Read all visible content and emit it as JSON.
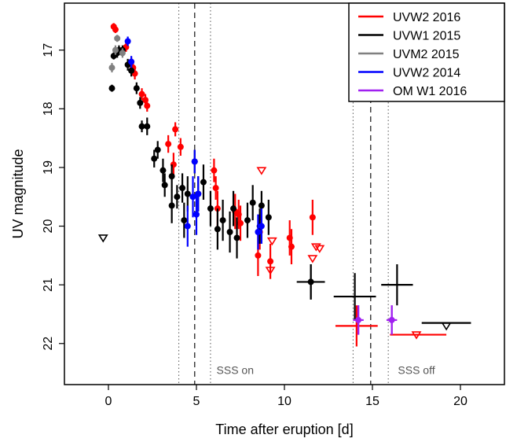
{
  "chart_data": {
    "type": "scatter",
    "xlabel": "Time after eruption [d]",
    "ylabel": "UV magnitude",
    "xlim": [
      -2.5,
      22.5
    ],
    "ylim": [
      22.7,
      16.2
    ],
    "y_inverted": true,
    "x_ticks": [
      0,
      5,
      10,
      15,
      20
    ],
    "y_ticks": [
      17,
      18,
      19,
      20,
      21,
      22
    ],
    "legend_position": "top-right",
    "grid": false,
    "vlines": {
      "dashed": [
        4.9,
        14.9
      ],
      "dotted": [
        4.0,
        5.8,
        13.9,
        15.9
      ]
    },
    "annotations": [
      {
        "text": "SSS on",
        "x": 7.2,
        "y": 22.45
      },
      {
        "text": "SSS off",
        "x": 17.5,
        "y": 22.45
      }
    ],
    "series": [
      {
        "name": "UVW2 2016",
        "color": "#ff0000",
        "points": [
          [
            0.3,
            16.6,
            0.06
          ],
          [
            0.4,
            16.65,
            0.06
          ],
          [
            1.0,
            16.95,
            0.08
          ],
          [
            1.3,
            17.2,
            0.08
          ],
          [
            1.4,
            17.3,
            0.08
          ],
          [
            1.5,
            17.4,
            0.1
          ],
          [
            1.9,
            17.75,
            0.1
          ],
          [
            2.1,
            17.85,
            0.1
          ],
          [
            2.2,
            17.95,
            0.1
          ],
          [
            3.4,
            18.6,
            0.15
          ],
          [
            3.7,
            18.95,
            0.2
          ],
          [
            3.8,
            18.35,
            0.12
          ],
          [
            4.1,
            18.65,
            0.15
          ],
          [
            6.0,
            19.05,
            0.2
          ],
          [
            6.1,
            19.35,
            0.2
          ],
          [
            6.2,
            19.7,
            0.3
          ],
          [
            7.2,
            19.75,
            0.3
          ],
          [
            7.4,
            19.8,
            0.25
          ],
          [
            7.5,
            19.95,
            0.3
          ],
          [
            8.5,
            20.5,
            0.35
          ],
          [
            8.6,
            20.1,
            0.3
          ],
          [
            9.2,
            20.6,
            0.3
          ],
          [
            10.3,
            20.2,
            0.3
          ],
          [
            10.4,
            20.35,
            0.3
          ],
          [
            11.6,
            19.85,
            0.3
          ]
        ],
        "upper_limits": [
          [
            8.7,
            19.05
          ],
          [
            9.2,
            20.75
          ],
          [
            9.3,
            20.25
          ],
          [
            11.6,
            20.55
          ],
          [
            11.8,
            20.35
          ],
          [
            12.0,
            20.38
          ],
          [
            17.5,
            21.85
          ]
        ],
        "binned": [
          [
            14.1,
            21.7,
            1.2,
            0.35
          ],
          [
            17.6,
            21.85,
            1.6,
            0
          ]
        ]
      },
      {
        "name": "UVW1 2015",
        "color": "#000000",
        "points": [
          [
            0.2,
            17.65,
            0.06
          ],
          [
            0.3,
            17.1,
            0.06
          ],
          [
            0.5,
            17.05,
            0.08
          ],
          [
            0.6,
            17.0,
            0.08
          ],
          [
            0.8,
            17.0,
            0.08
          ],
          [
            1.1,
            17.25,
            0.1
          ],
          [
            1.3,
            17.35,
            0.1
          ],
          [
            1.6,
            17.65,
            0.1
          ],
          [
            1.8,
            17.9,
            0.1
          ],
          [
            1.9,
            18.3,
            0.1
          ],
          [
            2.2,
            18.3,
            0.15
          ],
          [
            2.6,
            18.85,
            0.15
          ],
          [
            2.8,
            18.7,
            0.15
          ],
          [
            3.1,
            19.05,
            0.2
          ],
          [
            3.2,
            19.3,
            0.2
          ],
          [
            3.6,
            19.65,
            0.3
          ],
          [
            3.6,
            19.15,
            0.2
          ],
          [
            3.9,
            19.5,
            0.2
          ],
          [
            4.2,
            19.35,
            0.25
          ],
          [
            4.3,
            19.9,
            0.3
          ],
          [
            4.5,
            19.45,
            0.3
          ],
          [
            4.9,
            18.9,
            0.2
          ],
          [
            5.1,
            19.45,
            0.3
          ],
          [
            5.4,
            19.25,
            0.3
          ],
          [
            5.8,
            19.7,
            0.3
          ],
          [
            6.2,
            20.05,
            0.35
          ],
          [
            6.5,
            19.9,
            0.35
          ],
          [
            6.9,
            20.1,
            0.35
          ],
          [
            7.1,
            19.7,
            0.3
          ],
          [
            7.3,
            20.2,
            0.35
          ],
          [
            7.9,
            19.9,
            0.3
          ],
          [
            8.2,
            19.6,
            0.3
          ],
          [
            8.6,
            20.0,
            0.3
          ],
          [
            8.7,
            19.65,
            0.25
          ],
          [
            9.1,
            19.85,
            0.3
          ],
          [
            11.5,
            20.95,
            0.3
          ]
        ],
        "upper_limits": [
          [
            -0.3,
            20.2
          ],
          [
            19.2,
            21.7
          ]
        ],
        "binned": [
          [
            11.5,
            20.95,
            0.8,
            0.3
          ],
          [
            14.0,
            21.2,
            1.2,
            0.4
          ],
          [
            16.4,
            21.0,
            0.9,
            0.35
          ],
          [
            19.2,
            21.65,
            1.4,
            0
          ]
        ]
      },
      {
        "name": "UVM2 2015",
        "color": "#808080",
        "points": [
          [
            0.2,
            17.3,
            0.08
          ],
          [
            0.4,
            17.0,
            0.08
          ],
          [
            0.5,
            16.8,
            0.06
          ],
          [
            0.8,
            17.05,
            0.08
          ]
        ],
        "upper_limits": [],
        "binned": []
      },
      {
        "name": "UVW2 2014",
        "color": "#0000ff",
        "points": [
          [
            1.1,
            16.85,
            0.08
          ],
          [
            1.3,
            17.2,
            0.1
          ],
          [
            4.5,
            20.0,
            0.35
          ],
          [
            4.8,
            19.5,
            0.35
          ],
          [
            4.9,
            18.9,
            0.2
          ],
          [
            5.0,
            19.8,
            0.35
          ],
          [
            5.1,
            19.45,
            0.3
          ],
          [
            8.5,
            20.1,
            0.3
          ],
          [
            8.7,
            20.0,
            0.3
          ]
        ],
        "upper_limits": [],
        "binned": []
      },
      {
        "name": "OM W1 2016",
        "color": "#a020f0",
        "points": [
          [
            14.2,
            21.6,
            0.25
          ],
          [
            16.1,
            21.6,
            0.25
          ]
        ],
        "upper_limits": [],
        "binned": [
          [
            14.2,
            21.6,
            0.3,
            0.25
          ],
          [
            16.1,
            21.6,
            0.3,
            0.25
          ]
        ]
      }
    ]
  }
}
